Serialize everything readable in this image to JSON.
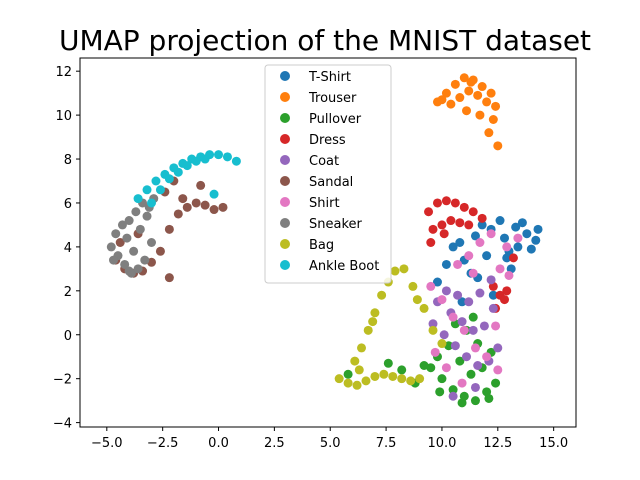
{
  "chart_data": {
    "type": "scatter",
    "title": "UMAP projection of the MNIST dataset",
    "xlabel": "",
    "ylabel": "",
    "xlim": [
      -6.2,
      16.0
    ],
    "ylim": [
      -4.2,
      12.6
    ],
    "xticks": [
      -5.0,
      -2.5,
      0.0,
      2.5,
      5.0,
      7.5,
      10.0,
      12.5,
      15.0
    ],
    "xtick_labels": [
      "−5.0",
      "−2.5",
      "0.0",
      "2.5",
      "5.0",
      "7.5",
      "10.0",
      "12.5",
      "15.0"
    ],
    "yticks": [
      -4,
      -2,
      0,
      2,
      4,
      6,
      8,
      10,
      12
    ],
    "ytick_labels": [
      "−4",
      "−2",
      "0",
      "2",
      "4",
      "6",
      "8",
      "10",
      "12"
    ],
    "grid": false,
    "legend_position": "top-center",
    "series": [
      {
        "name": "T-Shirt",
        "color": "#1f77b4",
        "x": [
          10.8,
          11.5,
          12.2,
          12.8,
          13.3,
          13.8,
          14.2,
          13.0,
          12.0,
          11.0,
          10.5,
          11.8,
          12.6,
          13.6,
          14.0,
          10.2,
          11.3,
          12.9,
          13.4,
          9.8,
          10.9,
          12.3,
          11.6,
          13.1,
          14.3
        ],
        "y": [
          4.2,
          4.5,
          4.8,
          4.4,
          4.9,
          4.6,
          4.3,
          3.8,
          3.6,
          3.4,
          4.0,
          5.0,
          5.2,
          5.1,
          3.9,
          3.2,
          2.8,
          3.5,
          4.0,
          2.4,
          1.5,
          1.8,
          2.6,
          3.0,
          4.8
        ]
      },
      {
        "name": "Trouser",
        "color": "#ff7f0e",
        "x": [
          9.8,
          10.2,
          10.6,
          11.0,
          11.4,
          11.8,
          12.2,
          12.4,
          10.4,
          10.8,
          11.2,
          11.6,
          12.0,
          12.3,
          11.1,
          11.7,
          10.0,
          12.5,
          12.1,
          11.3
        ],
        "y": [
          10.6,
          11.0,
          11.4,
          11.7,
          11.6,
          11.3,
          11.0,
          10.4,
          10.5,
          10.8,
          11.1,
          10.9,
          10.6,
          9.8,
          10.2,
          10.0,
          10.7,
          8.6,
          9.2,
          11.5
        ]
      },
      {
        "name": "Pullover",
        "color": "#2ca02c",
        "x": [
          9.5,
          10.0,
          10.5,
          11.0,
          11.5,
          12.0,
          12.4,
          9.8,
          10.3,
          10.8,
          11.3,
          11.8,
          12.2,
          8.2,
          8.8,
          9.2,
          10.6,
          11.1,
          11.6,
          12.1,
          5.8,
          7.6,
          9.9,
          10.9,
          11.4
        ],
        "y": [
          -1.5,
          -2.0,
          -2.5,
          -2.8,
          -3.0,
          -2.6,
          -2.2,
          -1.0,
          -0.5,
          -1.2,
          -1.8,
          -1.5,
          -0.8,
          -1.6,
          -2.2,
          -1.4,
          0.5,
          0.2,
          -0.4,
          -2.9,
          -1.8,
          -1.3,
          -2.6,
          -3.1,
          0.8
        ]
      },
      {
        "name": "Dress",
        "color": "#d62728",
        "x": [
          9.4,
          9.8,
          10.2,
          10.6,
          11.0,
          11.4,
          11.8,
          9.6,
          10.0,
          10.4,
          10.8,
          11.2,
          12.3,
          12.6,
          12.9,
          12.4,
          12.8,
          10.1,
          9.5,
          13.2
        ],
        "y": [
          5.6,
          6.0,
          6.1,
          6.0,
          5.8,
          5.6,
          5.3,
          4.8,
          5.0,
          5.2,
          5.1,
          5.0,
          2.2,
          1.8,
          2.0,
          1.2,
          1.6,
          4.6,
          4.2,
          3.5
        ]
      },
      {
        "name": "Coat",
        "color": "#9467bd",
        "x": [
          9.6,
          10.1,
          10.6,
          11.1,
          11.6,
          12.1,
          12.5,
          9.8,
          10.4,
          10.9,
          11.4,
          11.9,
          12.3,
          10.2,
          10.7,
          11.2,
          11.7,
          12.2,
          11.5,
          10.5
        ],
        "y": [
          0.5,
          0.0,
          -0.5,
          -1.0,
          -1.4,
          -1.2,
          -0.6,
          1.5,
          1.0,
          0.6,
          0.2,
          0.4,
          1.2,
          2.0,
          1.8,
          1.5,
          1.9,
          2.5,
          -2.4,
          -2.8
        ]
      },
      {
        "name": "Sandal",
        "color": "#8c564b",
        "x": [
          -4.6,
          -4.2,
          -3.8,
          -3.4,
          -3.0,
          -2.6,
          -2.2,
          -1.8,
          -1.4,
          -1.0,
          -0.6,
          -0.2,
          0.2,
          -2.4,
          -2.0,
          -3.6,
          -4.4,
          -2.2,
          -1.6,
          -0.8
        ],
        "y": [
          3.4,
          3.0,
          2.8,
          2.9,
          3.3,
          3.8,
          4.8,
          5.5,
          5.8,
          6.0,
          5.9,
          5.7,
          5.8,
          6.5,
          7.0,
          4.6,
          4.2,
          2.6,
          6.2,
          6.8
        ]
      },
      {
        "name": "Shirt",
        "color": "#e377c2",
        "x": [
          9.5,
          10.0,
          10.5,
          11.0,
          11.5,
          12.0,
          12.5,
          9.7,
          10.2,
          10.7,
          11.2,
          11.7,
          12.2,
          12.9,
          13.4,
          12.6,
          13.0,
          10.9,
          11.4,
          12.4
        ],
        "y": [
          2.2,
          1.6,
          0.8,
          0.2,
          -0.6,
          -1.0,
          -1.6,
          -0.8,
          -1.5,
          3.2,
          3.6,
          4.2,
          4.6,
          4.0,
          4.4,
          3.0,
          2.7,
          -2.2,
          2.8,
          0.4
        ]
      },
      {
        "name": "Sneaker",
        "color": "#7f7f7f",
        "x": [
          -4.8,
          -4.5,
          -4.2,
          -3.9,
          -3.6,
          -3.3,
          -3.0,
          -4.6,
          -4.3,
          -4.0,
          -3.7,
          -3.4,
          -4.1,
          -3.8,
          -3.2,
          -2.9,
          -4.7,
          -3.5,
          -4.0,
          -3.1
        ],
        "y": [
          4.0,
          3.6,
          3.2,
          2.8,
          3.0,
          3.4,
          4.2,
          4.6,
          5.0,
          5.2,
          5.6,
          6.0,
          4.4,
          3.8,
          5.4,
          6.2,
          3.4,
          4.8,
          2.9,
          5.8
        ]
      },
      {
        "name": "Bag",
        "color": "#bcbd22",
        "x": [
          5.4,
          5.8,
          6.2,
          6.6,
          7.0,
          7.4,
          7.8,
          8.2,
          8.6,
          9.0,
          6.1,
          6.4,
          6.7,
          7.0,
          7.3,
          7.6,
          7.9,
          8.3,
          8.7,
          9.2,
          9.6,
          10.0,
          6.3,
          6.9,
          8.9
        ],
        "y": [
          -2.0,
          -2.2,
          -2.3,
          -2.1,
          -1.9,
          -1.8,
          -1.9,
          -2.0,
          -2.1,
          -2.0,
          -1.2,
          -0.6,
          0.2,
          1.0,
          1.8,
          2.4,
          2.9,
          3.0,
          2.2,
          1.2,
          0.2,
          -0.4,
          -1.6,
          0.6,
          1.6
        ]
      },
      {
        "name": "Ankle Boot",
        "color": "#17becf",
        "x": [
          -3.6,
          -3.2,
          -2.8,
          -2.4,
          -2.0,
          -1.6,
          -1.2,
          -0.8,
          -0.4,
          0.0,
          0.4,
          0.8,
          -3.0,
          -2.6,
          -2.2,
          -1.8,
          -1.4,
          -1.0,
          -0.6,
          -0.2
        ],
        "y": [
          6.2,
          6.6,
          7.0,
          7.3,
          7.6,
          7.8,
          8.0,
          8.1,
          8.2,
          8.2,
          8.1,
          7.9,
          6.0,
          6.6,
          7.1,
          7.4,
          7.7,
          7.9,
          8.0,
          6.4
        ]
      }
    ]
  }
}
